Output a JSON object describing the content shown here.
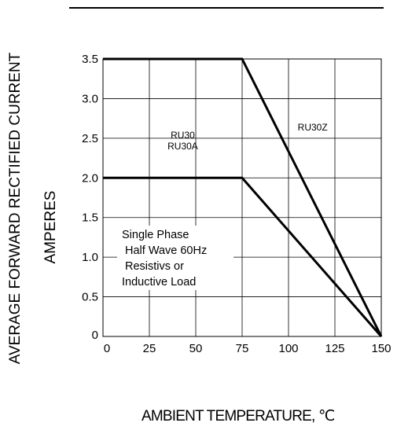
{
  "chart_data": {
    "type": "line",
    "title": "",
    "xlabel": "AMBIENT TEMPERATURE, ℃",
    "ylabel_line1": "AVERAGE FORWARD RECTIFIED CURRENT",
    "ylabel_line2": "AMPERES",
    "xlim": [
      0,
      150
    ],
    "ylim": [
      0,
      3.5
    ],
    "x_ticks": [
      "0",
      "25",
      "50",
      "75",
      "100",
      "125",
      "150"
    ],
    "x_tick_values": [
      0,
      25,
      50,
      75,
      100,
      125,
      150
    ],
    "y_ticks": [
      "0",
      "0.5",
      "1.0",
      "1.5",
      "2.0",
      "2.5",
      "3.0",
      "3.5"
    ],
    "y_tick_values": [
      0,
      0.5,
      1.0,
      1.5,
      2.0,
      2.5,
      3.0,
      3.5
    ],
    "grid": true,
    "series": [
      {
        "name": "RU30Z",
        "x": [
          0,
          75,
          150
        ],
        "y": [
          3.5,
          3.5,
          0
        ]
      },
      {
        "name": "RU30 RU30A",
        "x": [
          0,
          75,
          150
        ],
        "y": [
          2.0,
          2.0,
          0
        ]
      }
    ],
    "curve_labels": [
      {
        "lines": [
          "RU30",
          "RU30A"
        ],
        "x": 43,
        "y": 2.5
      },
      {
        "lines": [
          "RU30Z"
        ],
        "x": 113,
        "y": 2.6
      }
    ],
    "annotation": [
      "Single Phase",
      "Half Wave 60Hz",
      "Resistivs or",
      "Inductive Load"
    ]
  }
}
